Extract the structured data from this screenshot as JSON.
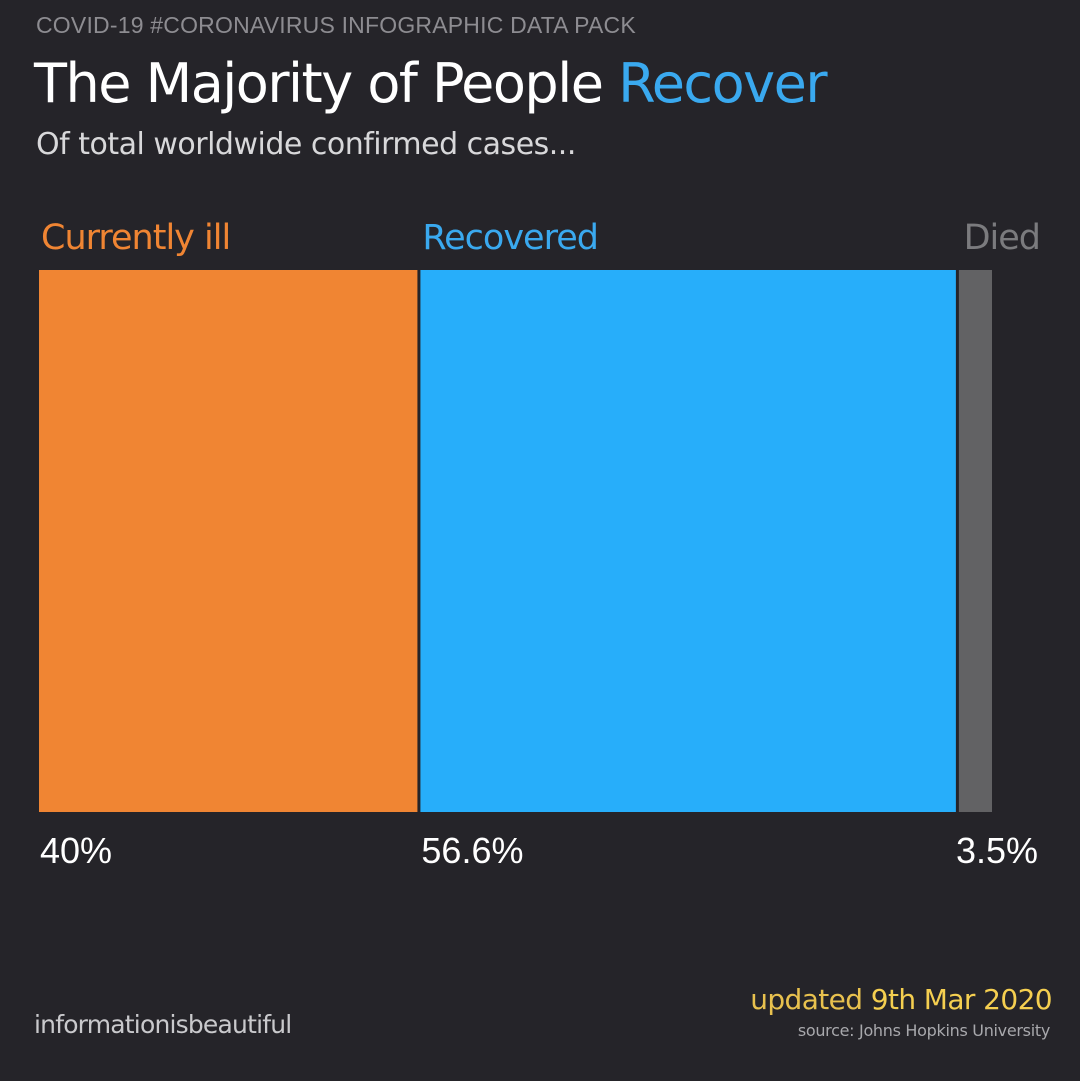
{
  "header": {
    "kicker": "COVID-19 #CORONAVIRUS INFOGRAPHIC DATA PACK",
    "title_part1": "The Majority of People ",
    "title_part2": "Recover",
    "subtitle": "Of total worldwide confirmed cases..."
  },
  "footer": {
    "brand": "informationisbeautiful",
    "updated_prefix": "updated ",
    "updated_date": "9th Mar 2020",
    "source": "source: Johns Hopkins University"
  },
  "colors": {
    "background": "#252429",
    "currently_ill": "#f08533",
    "recovered": "#27aefa",
    "died": "#626264",
    "recovered_label": "#3aa9ef",
    "died_label": "#7b7b7e",
    "value_label": "#ffffff"
  },
  "chart_data": {
    "type": "bar",
    "stacked": true,
    "orientation": "horizontal-proportional",
    "title": "The Majority of People Recover",
    "subtitle": "Of total worldwide confirmed cases...",
    "categories": [
      "Currently ill",
      "Recovered",
      "Died"
    ],
    "values": [
      40,
      56.6,
      3.5
    ],
    "value_labels": [
      "40%",
      "56.6%",
      "3.5%"
    ],
    "unit": "%"
  }
}
